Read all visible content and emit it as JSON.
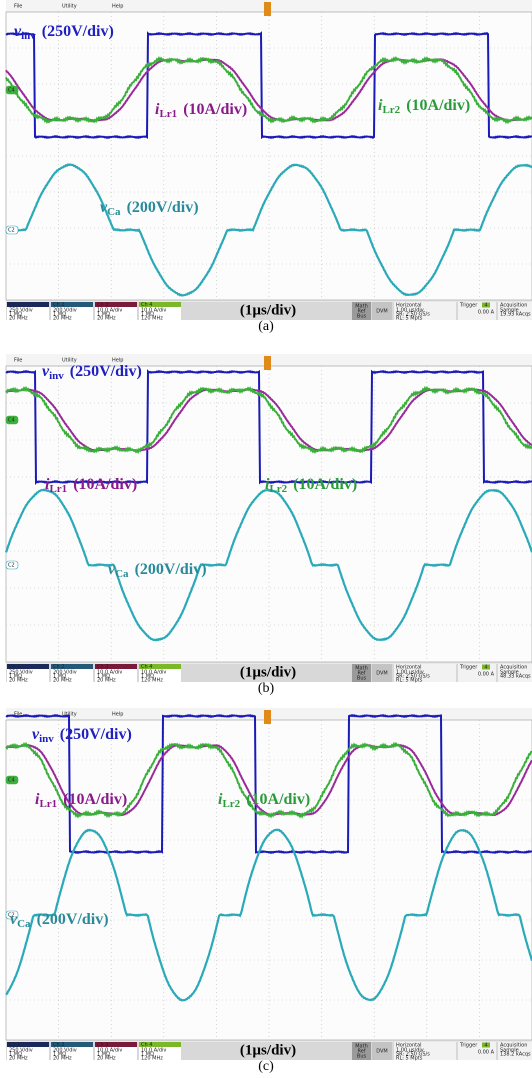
{
  "panels": [
    {
      "caption": "(a)",
      "menu": [
        "File",
        "Utility",
        "Help"
      ],
      "signals": [
        {
          "symbol": "v",
          "sub": "inv",
          "scale": "(250V/div)"
        },
        {
          "symbol": "i",
          "sub": "Lr1",
          "scale": "(10A/div)"
        },
        {
          "symbol": "i",
          "sub": "Lr2",
          "scale": "(10A/div)"
        },
        {
          "symbol": "v",
          "sub": "Ca",
          "scale": "(200V/div)"
        }
      ],
      "markers": [
        "C4",
        "C2"
      ],
      "channels": [
        {
          "name": "Ch 1",
          "lines": [
            "250 V/div",
            "1 MΩ",
            "20 MHz"
          ]
        },
        {
          "name": "Ch 2",
          "lines": [
            "200 V/div",
            "1 MΩ",
            "20 MHz"
          ]
        },
        {
          "name": "Ch 3",
          "lines": [
            "10.0 A/div",
            "1 MΩ",
            "20 MHz"
          ]
        },
        {
          "name": "Ch 4",
          "lines": [
            "10.0 A/div",
            "1 MΩ",
            "120 MHz"
          ]
        }
      ],
      "timebase": "(1µs/div)",
      "math": [
        "Math",
        "Ref",
        "Bus"
      ],
      "dvm": "DVM",
      "horizontal": {
        "title": "Horizontal",
        "lines": [
          "1.00 µs/div",
          "SR: 2.50 GS/s",
          "RL: 5 Mpts"
        ]
      },
      "trigger": {
        "title": "Trigger",
        "source": "4",
        "level": "0.00 A"
      },
      "acquisition": {
        "title": "Acquisition",
        "lines": [
          "Sample",
          "19.93 kAcqs"
        ]
      }
    },
    {
      "caption": "(b)",
      "menu": [
        "File",
        "Utility",
        "Help"
      ],
      "signals": [
        {
          "symbol": "v",
          "sub": "inv",
          "scale": "(250V/div)"
        },
        {
          "symbol": "i",
          "sub": "Lr1",
          "scale": "(10A/div)"
        },
        {
          "symbol": "i",
          "sub": "Lr2",
          "scale": "(10A/div)"
        },
        {
          "symbol": "v",
          "sub": "Ca",
          "scale": "(200V/div)"
        }
      ],
      "markers": [
        "C4",
        "C2"
      ],
      "channels": [
        {
          "name": "Ch 1",
          "lines": [
            "250 V/div",
            "1 MΩ",
            "20 MHz"
          ]
        },
        {
          "name": "Ch 2",
          "lines": [
            "200 V/div",
            "1 MΩ",
            "20 MHz"
          ]
        },
        {
          "name": "Ch 3",
          "lines": [
            "10.0 A/div",
            "1 MΩ",
            "20 MHz"
          ]
        },
        {
          "name": "Ch 4",
          "lines": [
            "10.0 A/div",
            "1 MΩ",
            "120 MHz"
          ]
        }
      ],
      "timebase": "(1µs/div)",
      "math": [
        "Math",
        "Ref",
        "Bus"
      ],
      "dvm": "DVM",
      "horizontal": {
        "title": "Horizontal",
        "lines": [
          "1.00 µs/div",
          "SR: 2.50 GS/s",
          "RL: 5 Mpts"
        ]
      },
      "trigger": {
        "title": "Trigger",
        "source": "4",
        "level": "0.00 A"
      },
      "acquisition": {
        "title": "Acquisition",
        "lines": [
          "Sample",
          "48.33 kAcqs"
        ]
      }
    },
    {
      "caption": "(c)",
      "menu": [
        "File",
        "Utility",
        "Help"
      ],
      "signals": [
        {
          "symbol": "v",
          "sub": "inv",
          "scale": "(250V/div)"
        },
        {
          "symbol": "i",
          "sub": "Lr1",
          "scale": "(10A/div)"
        },
        {
          "symbol": "i",
          "sub": "Lr2",
          "scale": "(10A/div)"
        },
        {
          "symbol": "v",
          "sub": "Ca",
          "scale": "(200V/div)"
        }
      ],
      "markers": [
        "C4",
        "C2"
      ],
      "channels": [
        {
          "name": "Ch 1",
          "lines": [
            "250 V/div",
            "1 MΩ",
            "20 MHz"
          ]
        },
        {
          "name": "Ch 2",
          "lines": [
            "200 V/div",
            "1 MΩ",
            "20 MHz"
          ]
        },
        {
          "name": "Ch 3",
          "lines": [
            "10.0 A/div",
            "1 MΩ",
            "20 MHz"
          ]
        },
        {
          "name": "Ch 4",
          "lines": [
            "10.0 A/div",
            "1 MΩ",
            "120 MHz"
          ]
        }
      ],
      "timebase": "(1µs/div)",
      "math": [
        "Math",
        "Ref",
        "Bus"
      ],
      "dvm": "DVM",
      "horizontal": {
        "title": "Horizontal",
        "lines": [
          "1.00 µs/div",
          "SR: 2.50 GS/s",
          "RL: 5 Mpts"
        ]
      },
      "trigger": {
        "title": "Trigger",
        "source": "4",
        "level": "0.00 A"
      },
      "acquisition": {
        "title": "Acquisition",
        "lines": [
          "Sample",
          "138.2 kAcqs"
        ]
      }
    }
  ]
}
